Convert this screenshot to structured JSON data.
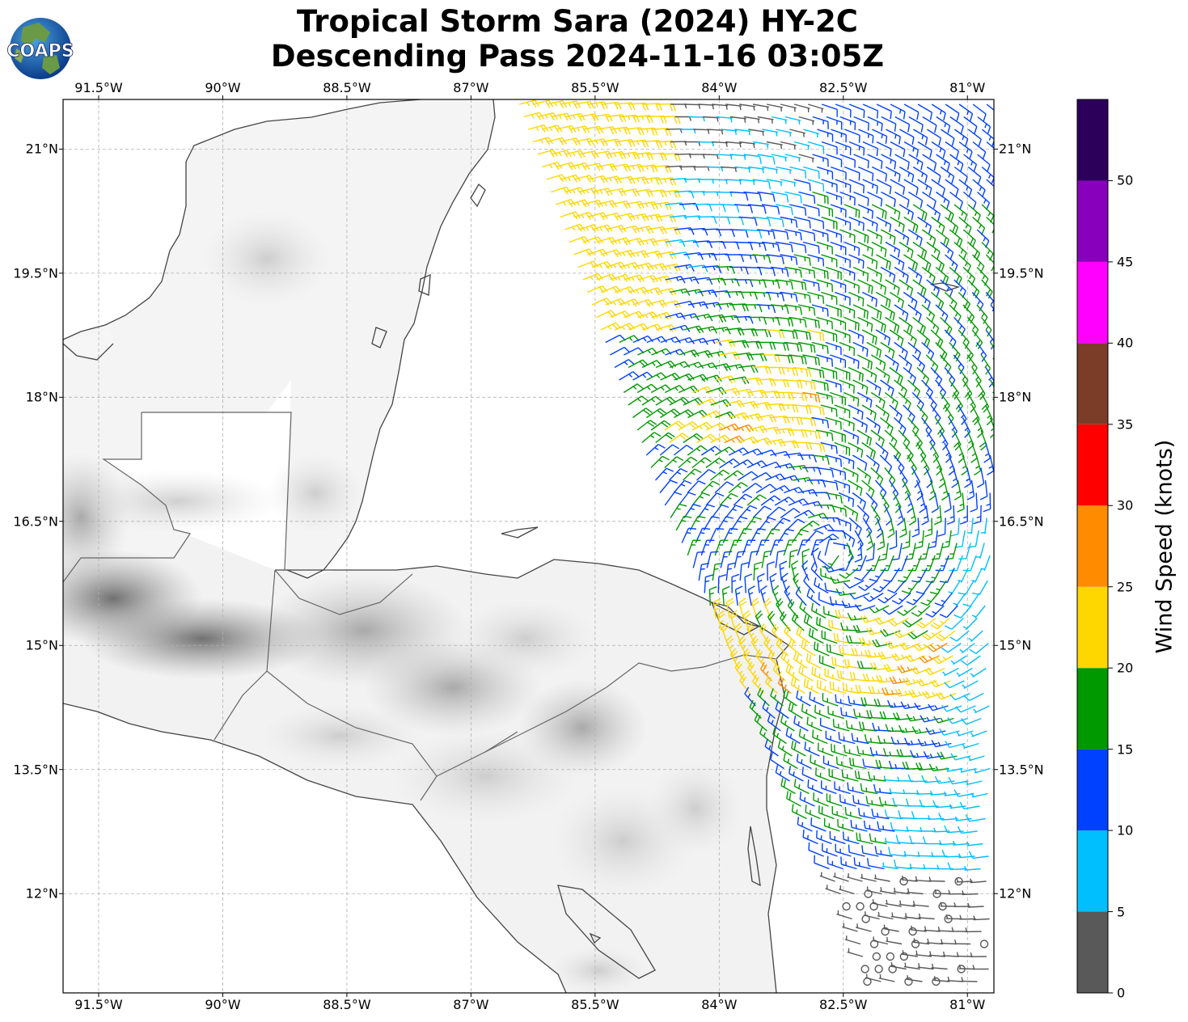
{
  "title": {
    "line1": "Tropical Storm Sara (2024) HY-2C",
    "line2": "Descending Pass 2024-11-16 03:05Z"
  },
  "logo": {
    "text": "COAPS"
  },
  "map": {
    "lon_labels": [
      "91.5°W",
      "90°W",
      "88.5°W",
      "87°W",
      "85.5°W",
      "84°W",
      "82.5°W",
      "81°W"
    ],
    "lat_labels": [
      "21°N",
      "19.5°N",
      "18°N",
      "16.5°N",
      "15°N",
      "13.5°N",
      "12°N"
    ],
    "lon_values": [
      -91.5,
      -90,
      -88.5,
      -87,
      -85.5,
      -84,
      -82.5,
      -81
    ],
    "lat_values": [
      21,
      19.5,
      18,
      16.5,
      15,
      13.5,
      12
    ],
    "extent": {
      "lon_min": -91.93,
      "lon_max": -80.68,
      "lat_min": 10.8,
      "lat_max": 21.6
    },
    "grid": true,
    "land_color": "#ffffff",
    "coast_color": "#444444"
  },
  "colorbar": {
    "title": "Wind Speed (knots)",
    "ticks": [
      "0",
      "5",
      "10",
      "15",
      "20",
      "25",
      "30",
      "35",
      "40",
      "45",
      "50"
    ],
    "bins": [
      {
        "min": 0,
        "max": 5,
        "color": "#595959"
      },
      {
        "min": 5,
        "max": 10,
        "color": "#00bfff"
      },
      {
        "min": 10,
        "max": 15,
        "color": "#0040ff"
      },
      {
        "min": 15,
        "max": 20,
        "color": "#009900"
      },
      {
        "min": 20,
        "max": 25,
        "color": "#ffd700"
      },
      {
        "min": 25,
        "max": 30,
        "color": "#ff8c00"
      },
      {
        "min": 30,
        "max": 35,
        "color": "#ff0000"
      },
      {
        "min": 35,
        "max": 40,
        "color": "#7b3c28"
      },
      {
        "min": 40,
        "max": 45,
        "color": "#ff00ff"
      },
      {
        "min": 45,
        "max": 50,
        "color": "#8800bb"
      },
      {
        "min": 50,
        "max": 55,
        "color": "#2c005a"
      }
    ]
  },
  "wind_field": {
    "center_lon": -82.6,
    "center_lat": 16.1,
    "barb_units": "knots",
    "swath_edges_lon": [
      [
        -86.4,
        -80.68
      ],
      [
        -83.1,
        -80.68
      ]
    ]
  }
}
